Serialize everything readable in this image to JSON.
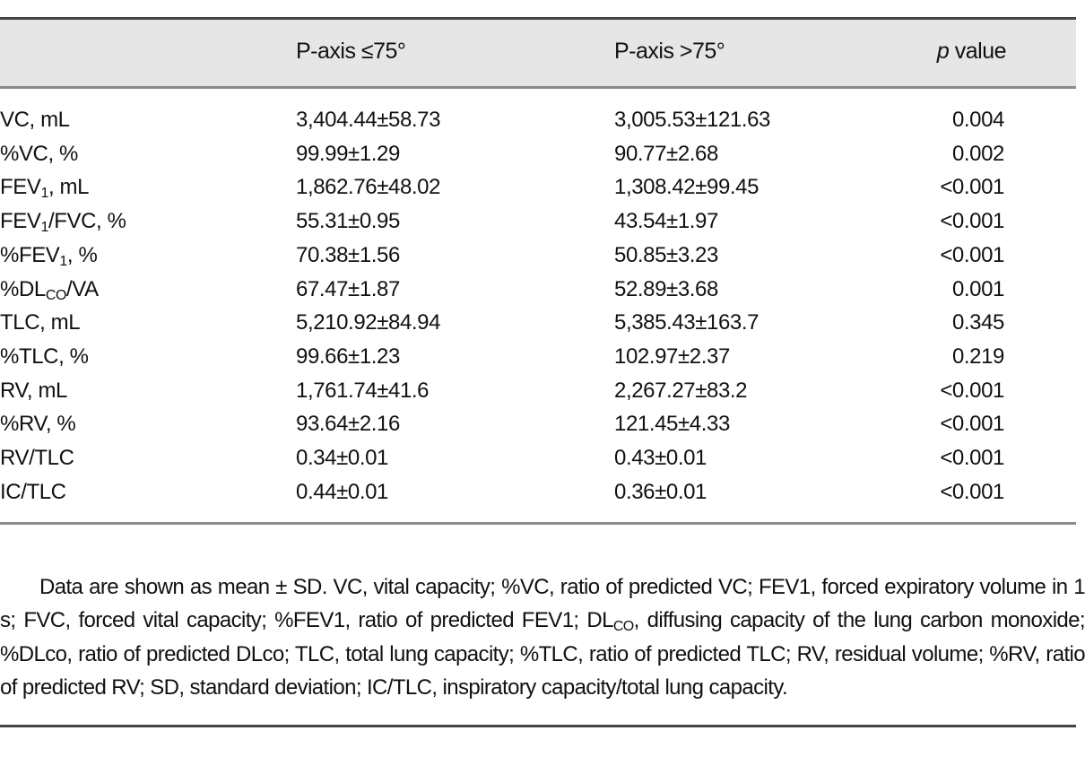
{
  "table": {
    "headers": [
      "",
      "P-axis ≤75°",
      "P-axis >75°",
      "value"
    ],
    "p_italic": "p",
    "rows": [
      {
        "label": {
          "pre": "VC, mL",
          "sub": "",
          "post": ""
        },
        "a": "3,404.44±58.73",
        "b": "3,005.53±121.63",
        "p": "0.004"
      },
      {
        "label": {
          "pre": "%VC, %",
          "sub": "",
          "post": ""
        },
        "a": "99.99±1.29",
        "b": "90.77±2.68",
        "p": "0.002"
      },
      {
        "label": {
          "pre": "FEV",
          "sub": "1",
          "post": ", mL"
        },
        "a": "1,862.76±48.02",
        "b": "1,308.42±99.45",
        "p": "<0.001"
      },
      {
        "label": {
          "pre": "FEV",
          "sub": "1",
          "post": "/FVC, %"
        },
        "a": "55.31±0.95",
        "b": "43.54±1.97",
        "p": "<0.001"
      },
      {
        "label": {
          "pre": "%FEV",
          "sub": "1",
          "post": ", %"
        },
        "a": "70.38±1.56",
        "b": "50.85±3.23",
        "p": "<0.001"
      },
      {
        "label": {
          "pre": "%DL",
          "sub": "CO",
          "post": "/VA"
        },
        "a": "67.47±1.87",
        "b": "52.89±3.68",
        "p": "0.001"
      },
      {
        "label": {
          "pre": "TLC, mL",
          "sub": "",
          "post": ""
        },
        "a": "5,210.92±84.94",
        "b": "5,385.43±163.7",
        "p": "0.345"
      },
      {
        "label": {
          "pre": "%TLC, %",
          "sub": "",
          "post": ""
        },
        "a": "99.66±1.23",
        "b": "102.97±2.37",
        "p": "0.219"
      },
      {
        "label": {
          "pre": "RV, mL",
          "sub": "",
          "post": ""
        },
        "a": "1,761.74±41.6",
        "b": "2,267.27±83.2",
        "p": "<0.001"
      },
      {
        "label": {
          "pre": "%RV, %",
          "sub": "",
          "post": ""
        },
        "a": "93.64±2.16",
        "b": "121.45±4.33",
        "p": "<0.001"
      },
      {
        "label": {
          "pre": "RV/TLC",
          "sub": "",
          "post": ""
        },
        "a": "0.34±0.01",
        "b": "0.43±0.01",
        "p": "<0.001"
      },
      {
        "label": {
          "pre": "IC/TLC",
          "sub": "",
          "post": ""
        },
        "a": "0.44±0.01",
        "b": "0.36±0.01",
        "p": "<0.001"
      }
    ]
  },
  "footnote": {
    "part1": "Data are shown as mean ± SD. VC, vital capacity; %VC, ratio of predicted VC; FEV1, forced expiratory volume in 1 s; FVC, forced vital capacity; %FEV1, ratio of predicted FEV1; DL",
    "sub": "CO",
    "part2": ", diffusing capacity of the lung carbon monoxide; %DLco, ratio of predicted DLco; TLC, total lung capacity; %TLC, ratio of predicted TLC; RV, residual volume; %RV, ratio of predicted RV; SD, standard deviation; IC/TLC, inspiratory capacity/total lung capacity."
  }
}
